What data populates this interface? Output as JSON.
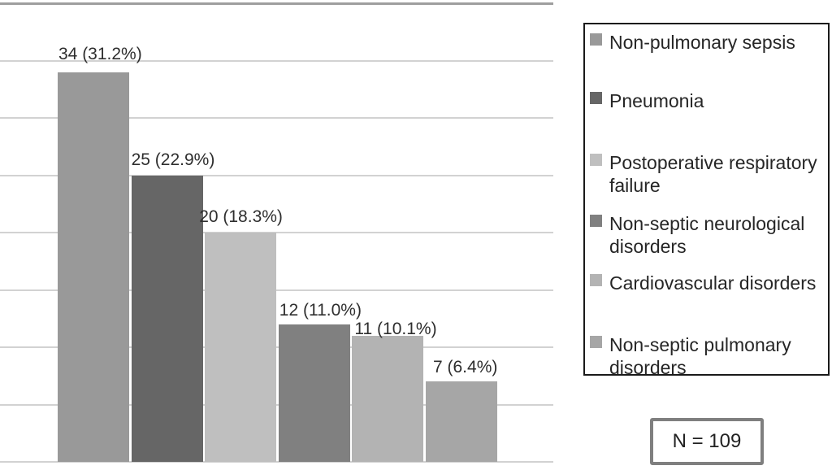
{
  "chart_data": {
    "type": "bar",
    "title": "",
    "xlabel": "",
    "ylabel": "",
    "categories": [
      "Non-pulmonary sepsis",
      "Pneumonia",
      "Postoperative respiratory failure",
      "Non-septic neurological disorders",
      "Cardiovascular disorders",
      "Non-septic pulmonary disorders"
    ],
    "values": [
      34,
      25,
      20,
      12,
      11,
      7
    ],
    "percentages": [
      31.2,
      22.9,
      18.3,
      11.0,
      10.1,
      6.4
    ],
    "bar_labels": [
      "34 (31.2%)",
      "25 (22.9%)",
      "20 (18.3%)",
      "12 (11.0%)",
      "11 (10.1%)",
      "7 (6.4%)"
    ],
    "bar_colors": [
      "#999999",
      "#666666",
      "#bfbfbf",
      "#808080",
      "#b3b3b3",
      "#a6a6a6"
    ],
    "ylim": [
      0,
      40
    ],
    "grid_step": 5,
    "grid": "on",
    "legend_position": "right",
    "legend": [
      {
        "lines": [
          "Non-pulmonary sepsis"
        ],
        "color": "#999999"
      },
      {
        "lines": [
          "Pneumonia"
        ],
        "color": "#666666"
      },
      {
        "lines": [
          "Postoperative respiratory",
          "failure"
        ],
        "color": "#bfbfbf"
      },
      {
        "lines": [
          "Non-septic neurological",
          "disorders"
        ],
        "color": "#808080"
      },
      {
        "lines": [
          "Cardiovascular disorders"
        ],
        "color": "#b3b3b3"
      },
      {
        "lines": [
          "Non-septic pulmonary",
          "disorders"
        ],
        "color": "#a6a6a6"
      }
    ],
    "annotation": "N = 109"
  },
  "colors": {
    "gridline": "#d2d2d2",
    "axis_top_line": "#9e9e9e",
    "label_text": "#2e2e2e",
    "legend_border": "#1a1a1a",
    "nbox_border": "#7f7f7f"
  }
}
